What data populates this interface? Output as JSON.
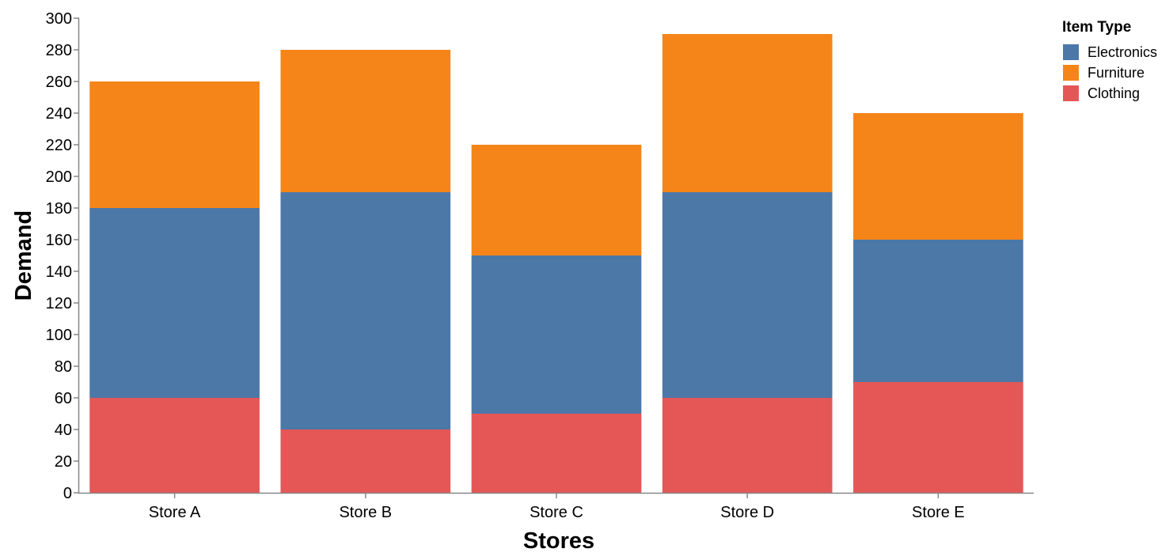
{
  "chart_data": {
    "type": "bar",
    "stacked": true,
    "categories": [
      "Store A",
      "Store B",
      "Store C",
      "Store D",
      "Store E"
    ],
    "series": [
      {
        "name": "Clothing",
        "color": "#e45756",
        "values": [
          60,
          40,
          50,
          60,
          70
        ]
      },
      {
        "name": "Electronics",
        "color": "#4c78a8",
        "values": [
          120,
          150,
          100,
          130,
          90
        ]
      },
      {
        "name": "Furniture",
        "color": "#f58518",
        "values": [
          80,
          90,
          70,
          100,
          80
        ]
      }
    ],
    "legend_order": [
      "Electronics",
      "Furniture",
      "Clothing"
    ],
    "legend_title": "Item Type",
    "legend_position": "top-right",
    "xlabel": "Stores",
    "ylabel": "Demand",
    "ylim": [
      0,
      300
    ],
    "yticks": [
      0,
      20,
      40,
      60,
      80,
      100,
      120,
      140,
      160,
      180,
      200,
      220,
      240,
      260,
      280,
      300
    ],
    "grid": false
  }
}
